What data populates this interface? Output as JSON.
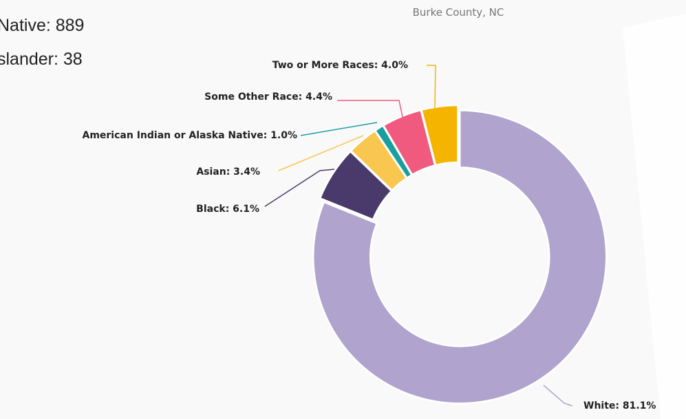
{
  "side_text": [
    "Native: 889",
    "slander: 38"
  ],
  "chart_data": {
    "type": "donut",
    "subtitle": "Burke County, NC",
    "values": [
      81.1,
      6.1,
      3.4,
      1.0,
      4.4,
      4.0
    ],
    "value_labels": [
      "White: 81.1%",
      "Black: 6.1%",
      "Asian: 3.4%",
      "American Indian or Alaska Native: 1.0%",
      "Some Other Race: 4.4%",
      "Two or More Races: 4.0%"
    ],
    "colors": [
      "#b0a4cf",
      "#4a3a6b",
      "#f9c74f",
      "#1a9ea0",
      "#f05a7e",
      "#f4b400"
    ]
  }
}
